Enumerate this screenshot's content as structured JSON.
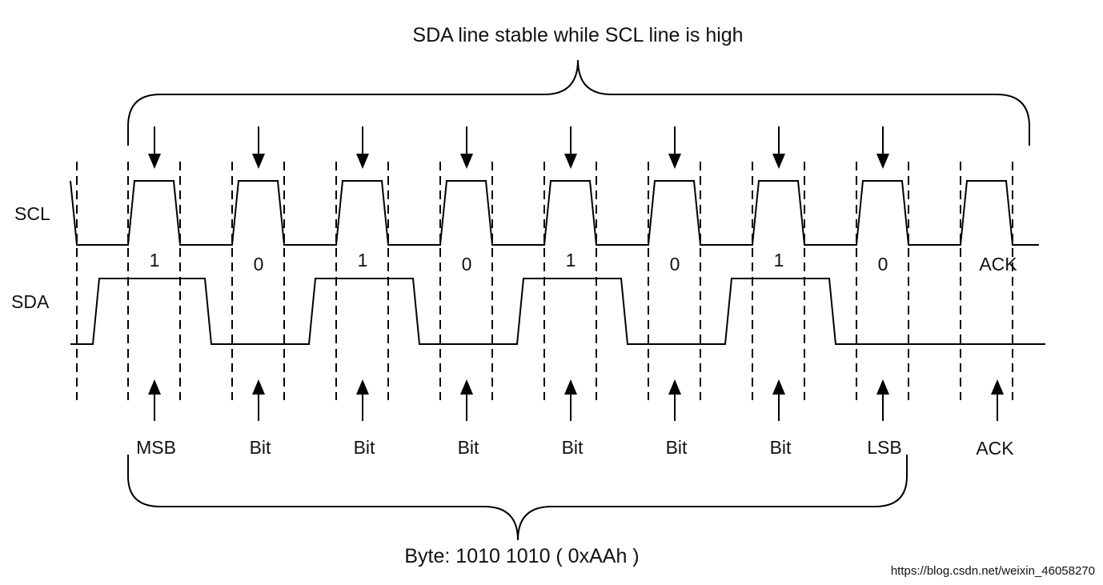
{
  "diagram": {
    "top_caption": "SDA line stable while SCL line is high",
    "bottom_caption": "Byte: 1010 1010 ( 0xAAh )",
    "scl_label": "SCL",
    "sda_label": "SDA",
    "bits": [
      {
        "value": "1",
        "name": "MSB"
      },
      {
        "value": "0",
        "name": "Bit"
      },
      {
        "value": "1",
        "name": "Bit"
      },
      {
        "value": "0",
        "name": "Bit"
      },
      {
        "value": "1",
        "name": "Bit"
      },
      {
        "value": "0",
        "name": "Bit"
      },
      {
        "value": "1",
        "name": "Bit"
      },
      {
        "value": "0",
        "name": "LSB"
      }
    ],
    "ack_value": "ACK",
    "ack_name": "ACK",
    "watermark": "https://blog.csdn.net/weixin_46058270"
  }
}
